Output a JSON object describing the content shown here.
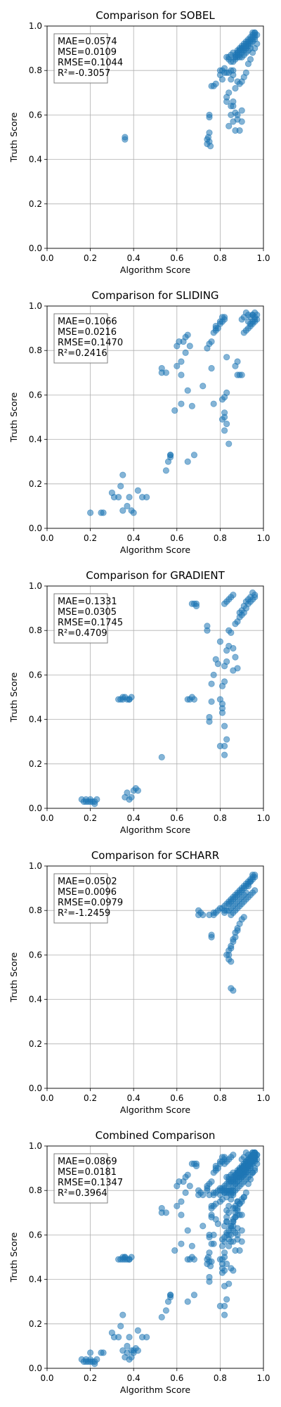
{
  "figure": {
    "width": 400,
    "height": 2000
  },
  "style": {
    "point_color": "#1f77b4",
    "point_alpha": 0.55,
    "grid_color": "#b0b0b0",
    "axes_color": "#000000",
    "stats_box_edge": "#7f7f7f"
  },
  "chart_data": [
    {
      "type": "scatter",
      "title": "Comparison for SOBEL",
      "xlabel": "Algorithm Score",
      "ylabel": "Truth Score",
      "xlim": [
        0,
        1
      ],
      "ylim": [
        0,
        1
      ],
      "grid": true,
      "xticks": [
        "0.0",
        "0.2",
        "0.4",
        "0.6",
        "0.8",
        "1.0"
      ],
      "yticks": [
        "0.0",
        "0.2",
        "0.4",
        "0.6",
        "0.8",
        "1.0"
      ],
      "stats": [
        "MAE=0.0574",
        "MSE=0.0109",
        "RMSE=0.1044",
        "R²=-0.3057"
      ],
      "stats_location": "upper-left",
      "x": [
        0.36,
        0.36,
        0.74,
        0.74,
        0.745,
        0.75,
        0.75,
        0.755,
        0.75,
        0.75,
        0.76,
        0.77,
        0.78,
        0.8,
        0.81,
        0.82,
        0.83,
        0.84,
        0.85,
        0.86,
        0.84,
        0.83,
        0.84,
        0.85,
        0.85,
        0.86,
        0.87,
        0.87,
        0.86,
        0.88,
        0.88,
        0.89,
        0.9,
        0.9,
        0.91,
        0.92,
        0.93,
        0.94,
        0.95,
        0.96,
        0.96,
        0.95,
        0.94,
        0.93,
        0.92,
        0.91,
        0.9,
        0.89,
        0.88,
        0.87,
        0.87,
        0.88,
        0.89,
        0.9,
        0.91,
        0.92,
        0.93,
        0.94,
        0.95,
        0.96,
        0.96,
        0.95,
        0.94,
        0.93,
        0.92,
        0.91,
        0.9,
        0.89,
        0.88,
        0.86,
        0.85,
        0.84,
        0.83,
        0.85,
        0.86,
        0.87,
        0.88,
        0.89,
        0.9,
        0.91,
        0.92,
        0.93,
        0.94,
        0.95,
        0.96,
        0.97,
        0.97,
        0.96,
        0.95,
        0.94,
        0.93,
        0.92,
        0.91,
        0.9,
        0.89,
        0.84,
        0.86,
        0.88,
        0.9,
        0.85,
        0.87,
        0.82,
        0.8,
        0.81,
        0.83,
        0.86,
        0.88,
        0.87,
        0.89,
        0.9
      ],
      "y": [
        0.5,
        0.49,
        0.47,
        0.49,
        0.5,
        0.52,
        0.48,
        0.46,
        0.59,
        0.6,
        0.73,
        0.73,
        0.74,
        0.8,
        0.8,
        0.81,
        0.79,
        0.79,
        0.8,
        0.8,
        0.85,
        0.86,
        0.86,
        0.87,
        0.84,
        0.84,
        0.85,
        0.86,
        0.88,
        0.87,
        0.88,
        0.89,
        0.89,
        0.9,
        0.9,
        0.91,
        0.92,
        0.93,
        0.94,
        0.95,
        0.96,
        0.97,
        0.94,
        0.93,
        0.92,
        0.91,
        0.9,
        0.89,
        0.88,
        0.87,
        0.86,
        0.86,
        0.87,
        0.88,
        0.89,
        0.9,
        0.91,
        0.92,
        0.93,
        0.94,
        0.97,
        0.96,
        0.95,
        0.94,
        0.93,
        0.92,
        0.91,
        0.9,
        0.89,
        0.78,
        0.76,
        0.7,
        0.66,
        0.64,
        0.66,
        0.72,
        0.75,
        0.74,
        0.75,
        0.77,
        0.79,
        0.83,
        0.85,
        0.88,
        0.9,
        0.92,
        0.96,
        0.97,
        0.95,
        0.9,
        0.89,
        0.88,
        0.87,
        0.86,
        0.86,
        0.55,
        0.57,
        0.58,
        0.57,
        0.6,
        0.61,
        0.79,
        0.78,
        0.76,
        0.68,
        0.64,
        0.6,
        0.53,
        0.53,
        0.62
      ]
    },
    {
      "type": "scatter",
      "title": "Comparison for SLIDING",
      "xlabel": "Algorithm Score",
      "ylabel": "Truth Score",
      "xlim": [
        0,
        1
      ],
      "ylim": [
        0,
        1
      ],
      "grid": true,
      "xticks": [
        "0.0",
        "0.2",
        "0.4",
        "0.6",
        "0.8",
        "1.0"
      ],
      "yticks": [
        "0.0",
        "0.2",
        "0.4",
        "0.6",
        "0.8",
        "1.0"
      ],
      "stats": [
        "MAE=0.1066",
        "MSE=0.0216",
        "RMSE=0.1470",
        "R²=0.2416"
      ],
      "stats_location": "upper-left",
      "x": [
        0.2,
        0.25,
        0.26,
        0.3,
        0.31,
        0.33,
        0.34,
        0.35,
        0.35,
        0.37,
        0.38,
        0.39,
        0.4,
        0.42,
        0.44,
        0.46,
        0.53,
        0.53,
        0.55,
        0.56,
        0.57,
        0.57,
        0.59,
        0.6,
        0.61,
        0.62,
        0.62,
        0.63,
        0.64,
        0.65,
        0.65,
        0.67,
        0.68,
        0.72,
        0.74,
        0.75,
        0.76,
        0.77,
        0.78,
        0.78,
        0.8,
        0.81,
        0.82,
        0.82,
        0.82,
        0.83,
        0.82,
        0.81,
        0.81,
        0.82,
        0.83,
        0.84,
        0.87,
        0.88,
        0.88,
        0.89,
        0.9,
        0.91,
        0.92,
        0.93,
        0.94,
        0.95,
        0.96,
        0.97,
        0.96,
        0.95,
        0.93,
        0.92,
        0.91,
        0.9,
        0.93,
        0.94,
        0.95,
        0.96,
        0.97,
        0.96,
        0.95,
        0.94,
        0.55,
        0.57,
        0.6,
        0.62,
        0.64,
        0.65,
        0.66,
        0.76,
        0.77,
        0.78,
        0.79,
        0.8,
        0.81,
        0.82,
        0.83
      ],
      "y": [
        0.07,
        0.07,
        0.07,
        0.16,
        0.14,
        0.14,
        0.19,
        0.24,
        0.08,
        0.1,
        0.14,
        0.08,
        0.07,
        0.17,
        0.14,
        0.14,
        0.72,
        0.7,
        0.26,
        0.3,
        0.32,
        0.33,
        0.53,
        0.82,
        0.84,
        0.56,
        0.75,
        0.84,
        0.86,
        0.87,
        0.3,
        0.55,
        0.33,
        0.64,
        0.81,
        0.83,
        0.84,
        0.88,
        0.9,
        0.91,
        0.92,
        0.93,
        0.94,
        0.95,
        0.5,
        0.47,
        0.44,
        0.49,
        0.58,
        0.59,
        0.61,
        0.38,
        0.73,
        0.75,
        0.69,
        0.69,
        0.69,
        0.88,
        0.89,
        0.9,
        0.91,
        0.92,
        0.93,
        0.94,
        0.95,
        0.96,
        0.96,
        0.97,
        0.95,
        0.94,
        0.93,
        0.95,
        0.96,
        0.97,
        0.96,
        0.94,
        0.93,
        0.92,
        0.7,
        0.33,
        0.73,
        0.69,
        0.79,
        0.62,
        0.82,
        0.72,
        0.56,
        0.89,
        0.9,
        0.93,
        0.95,
        0.52,
        0.77
      ]
    },
    {
      "type": "scatter",
      "title": "Comparison for GRADIENT",
      "xlabel": "Algorithm Score",
      "ylabel": "Truth Score",
      "xlim": [
        0,
        1
      ],
      "ylim": [
        0,
        1
      ],
      "grid": true,
      "xticks": [
        "0.0",
        "0.2",
        "0.4",
        "0.6",
        "0.8",
        "1.0"
      ],
      "yticks": [
        "0.0",
        "0.2",
        "0.4",
        "0.6",
        "0.8",
        "1.0"
      ],
      "stats": [
        "MAE=0.1331",
        "MSE=0.0305",
        "RMSE=0.1745",
        "R²=0.4709"
      ],
      "stats_location": "upper-left",
      "x": [
        0.16,
        0.17,
        0.18,
        0.19,
        0.2,
        0.2,
        0.21,
        0.22,
        0.22,
        0.23,
        0.18,
        0.36,
        0.37,
        0.38,
        0.39,
        0.4,
        0.41,
        0.42,
        0.33,
        0.34,
        0.35,
        0.36,
        0.37,
        0.38,
        0.39,
        0.35,
        0.38,
        0.53,
        0.65,
        0.66,
        0.67,
        0.68,
        0.67,
        0.68,
        0.69,
        0.69,
        0.74,
        0.74,
        0.75,
        0.75,
        0.76,
        0.76,
        0.77,
        0.78,
        0.79,
        0.8,
        0.81,
        0.82,
        0.82,
        0.83,
        0.82,
        0.81,
        0.8,
        0.82,
        0.83,
        0.84,
        0.85,
        0.86,
        0.87,
        0.88,
        0.89,
        0.9,
        0.91,
        0.92,
        0.93,
        0.94,
        0.95,
        0.96,
        0.96,
        0.95,
        0.94,
        0.93,
        0.92,
        0.91,
        0.9,
        0.89,
        0.87,
        0.86,
        0.85,
        0.84,
        0.83,
        0.82,
        0.81,
        0.8,
        0.86,
        0.88,
        0.84,
        0.83,
        0.82,
        0.81
      ],
      "y": [
        0.04,
        0.03,
        0.04,
        0.03,
        0.03,
        0.04,
        0.03,
        0.02,
        0.03,
        0.04,
        0.03,
        0.05,
        0.07,
        0.04,
        0.05,
        0.08,
        0.09,
        0.08,
        0.49,
        0.49,
        0.5,
        0.5,
        0.49,
        0.49,
        0.5,
        0.49,
        0.49,
        0.23,
        0.49,
        0.49,
        0.5,
        0.49,
        0.92,
        0.92,
        0.92,
        0.91,
        0.82,
        0.8,
        0.41,
        0.39,
        0.56,
        0.48,
        0.6,
        0.67,
        0.65,
        0.49,
        0.43,
        0.28,
        0.24,
        0.31,
        0.37,
        0.45,
        0.75,
        0.92,
        0.93,
        0.94,
        0.95,
        0.96,
        0.83,
        0.84,
        0.86,
        0.87,
        0.88,
        0.9,
        0.92,
        0.93,
        0.94,
        0.95,
        0.96,
        0.97,
        0.95,
        0.94,
        0.93,
        0.91,
        0.89,
        0.88,
        0.68,
        0.72,
        0.79,
        0.8,
        0.66,
        0.64,
        0.55,
        0.28,
        0.62,
        0.63,
        0.73,
        0.71,
        0.57,
        0.47
      ]
    },
    {
      "type": "scatter",
      "title": "Comparison for SCHARR",
      "xlabel": "Algorithm Score",
      "ylabel": "Truth Score",
      "xlim": [
        0,
        1
      ],
      "ylim": [
        0,
        1
      ],
      "grid": true,
      "xticks": [
        "0.0",
        "0.2",
        "0.4",
        "0.6",
        "0.8",
        "1.0"
      ],
      "yticks": [
        "0.0",
        "0.2",
        "0.4",
        "0.6",
        "0.8",
        "1.0"
      ],
      "stats": [
        "MAE=0.0502",
        "MSE=0.0096",
        "RMSE=0.0979",
        "R²=-1.2459"
      ],
      "stats_location": "upper-left",
      "x": [
        0.7,
        0.7,
        0.71,
        0.72,
        0.75,
        0.76,
        0.76,
        0.77,
        0.77,
        0.78,
        0.79,
        0.8,
        0.81,
        0.82,
        0.82,
        0.83,
        0.84,
        0.84,
        0.85,
        0.85,
        0.86,
        0.86,
        0.87,
        0.87,
        0.88,
        0.88,
        0.89,
        0.89,
        0.9,
        0.9,
        0.91,
        0.91,
        0.92,
        0.92,
        0.93,
        0.93,
        0.94,
        0.94,
        0.95,
        0.95,
        0.96,
        0.96,
        0.95,
        0.94,
        0.93,
        0.92,
        0.91,
        0.9,
        0.89,
        0.88,
        0.87,
        0.86,
        0.85,
        0.84,
        0.83,
        0.82,
        0.85,
        0.86,
        0.84,
        0.85,
        0.83,
        0.84,
        0.85,
        0.86,
        0.87,
        0.88,
        0.89,
        0.9,
        0.91,
        0.88,
        0.87,
        0.86,
        0.85,
        0.84,
        0.85,
        0.86,
        0.87,
        0.88,
        0.89,
        0.9,
        0.91,
        0.92,
        0.93,
        0.94,
        0.95,
        0.96
      ],
      "y": [
        0.8,
        0.78,
        0.79,
        0.78,
        0.78,
        0.69,
        0.68,
        0.78,
        0.79,
        0.79,
        0.8,
        0.81,
        0.81,
        0.82,
        0.8,
        0.83,
        0.83,
        0.84,
        0.84,
        0.85,
        0.85,
        0.86,
        0.86,
        0.87,
        0.87,
        0.88,
        0.88,
        0.89,
        0.89,
        0.9,
        0.9,
        0.91,
        0.91,
        0.92,
        0.92,
        0.93,
        0.93,
        0.94,
        0.94,
        0.95,
        0.95,
        0.96,
        0.96,
        0.93,
        0.91,
        0.88,
        0.87,
        0.86,
        0.85,
        0.84,
        0.83,
        0.82,
        0.81,
        0.8,
        0.8,
        0.79,
        0.45,
        0.44,
        0.58,
        0.57,
        0.6,
        0.62,
        0.64,
        0.67,
        0.68,
        0.72,
        0.74,
        0.76,
        0.77,
        0.71,
        0.7,
        0.66,
        0.63,
        0.6,
        0.78,
        0.79,
        0.8,
        0.81,
        0.82,
        0.83,
        0.84,
        0.85,
        0.86,
        0.87,
        0.88,
        0.89
      ]
    },
    {
      "type": "scatter",
      "title": "Combined Comparison",
      "xlabel": "Algorithm Score",
      "ylabel": "Truth Score",
      "xlim": [
        0,
        1
      ],
      "ylim": [
        0,
        1
      ],
      "grid": true,
      "xticks": [
        "0.0",
        "0.2",
        "0.4",
        "0.6",
        "0.8",
        "1.0"
      ],
      "yticks": [
        "0.0",
        "0.2",
        "0.4",
        "0.6",
        "0.8",
        "1.0"
      ],
      "stats": [
        "MAE=0.0869",
        "MSE=0.0181",
        "RMSE=0.1347",
        "R²=0.3964"
      ],
      "stats_location": "upper-left",
      "combine_of": [
        0,
        1,
        2,
        3
      ],
      "x": [],
      "y": []
    }
  ]
}
